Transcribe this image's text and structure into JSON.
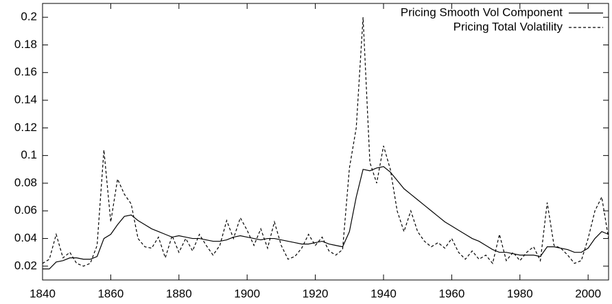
{
  "chart_data": {
    "type": "line",
    "x": [
      1840,
      1842,
      1844,
      1846,
      1848,
      1850,
      1852,
      1854,
      1856,
      1858,
      1860,
      1862,
      1864,
      1866,
      1868,
      1870,
      1872,
      1874,
      1876,
      1878,
      1880,
      1882,
      1884,
      1886,
      1888,
      1890,
      1892,
      1894,
      1896,
      1898,
      1900,
      1902,
      1904,
      1906,
      1908,
      1910,
      1912,
      1914,
      1916,
      1918,
      1920,
      1922,
      1924,
      1926,
      1928,
      1930,
      1932,
      1934,
      1936,
      1938,
      1940,
      1942,
      1944,
      1946,
      1948,
      1950,
      1952,
      1954,
      1956,
      1958,
      1960,
      1962,
      1964,
      1966,
      1968,
      1970,
      1972,
      1974,
      1976,
      1978,
      1980,
      1982,
      1984,
      1986,
      1988,
      1990,
      1992,
      1994,
      1996,
      1998,
      2000,
      2002,
      2004,
      2006
    ],
    "series": [
      {
        "name": "Pricing Smooth Vol Component",
        "color": "#000000",
        "dash": "solid",
        "values": [
          0.018,
          0.018,
          0.023,
          0.024,
          0.026,
          0.026,
          0.025,
          0.025,
          0.027,
          0.04,
          0.043,
          0.05,
          0.056,
          0.057,
          0.053,
          0.05,
          0.047,
          0.045,
          0.043,
          0.041,
          0.042,
          0.041,
          0.04,
          0.04,
          0.039,
          0.038,
          0.038,
          0.039,
          0.041,
          0.042,
          0.041,
          0.04,
          0.039,
          0.04,
          0.04,
          0.039,
          0.038,
          0.037,
          0.036,
          0.036,
          0.037,
          0.038,
          0.036,
          0.035,
          0.034,
          0.045,
          0.07,
          0.09,
          0.089,
          0.091,
          0.092,
          0.088,
          0.082,
          0.076,
          0.072,
          0.068,
          0.064,
          0.06,
          0.056,
          0.052,
          0.049,
          0.046,
          0.043,
          0.04,
          0.038,
          0.035,
          0.032,
          0.03,
          0.03,
          0.029,
          0.028,
          0.028,
          0.028,
          0.027,
          0.034,
          0.034,
          0.033,
          0.032,
          0.03,
          0.03,
          0.033,
          0.04,
          0.045,
          0.043
        ]
      },
      {
        "name": "Pricing Total Volatility",
        "color": "#000000",
        "dash": "dashed",
        "values": [
          0.022,
          0.025,
          0.043,
          0.026,
          0.03,
          0.022,
          0.02,
          0.022,
          0.035,
          0.104,
          0.052,
          0.083,
          0.072,
          0.065,
          0.04,
          0.034,
          0.033,
          0.041,
          0.026,
          0.042,
          0.03,
          0.04,
          0.031,
          0.043,
          0.035,
          0.028,
          0.035,
          0.053,
          0.04,
          0.055,
          0.046,
          0.035,
          0.047,
          0.033,
          0.052,
          0.035,
          0.025,
          0.027,
          0.033,
          0.043,
          0.035,
          0.041,
          0.031,
          0.028,
          0.032,
          0.091,
          0.12,
          0.2,
          0.095,
          0.08,
          0.107,
          0.09,
          0.06,
          0.045,
          0.06,
          0.045,
          0.038,
          0.034,
          0.037,
          0.033,
          0.04,
          0.03,
          0.025,
          0.031,
          0.025,
          0.028,
          0.022,
          0.043,
          0.024,
          0.03,
          0.024,
          0.03,
          0.034,
          0.024,
          0.066,
          0.035,
          0.033,
          0.028,
          0.022,
          0.024,
          0.04,
          0.06,
          0.07,
          0.04
        ]
      }
    ],
    "xlim": [
      1840,
      2006
    ],
    "xticks": [
      1840,
      1860,
      1880,
      1900,
      1920,
      1940,
      1960,
      1980,
      2000
    ],
    "ylim": [
      0.01,
      0.21
    ],
    "yticks": [
      0.02,
      0.04,
      0.06,
      0.08,
      0.1,
      0.12,
      0.14,
      0.16,
      0.18,
      0.2
    ],
    "legend": "top right",
    "grid": false
  }
}
